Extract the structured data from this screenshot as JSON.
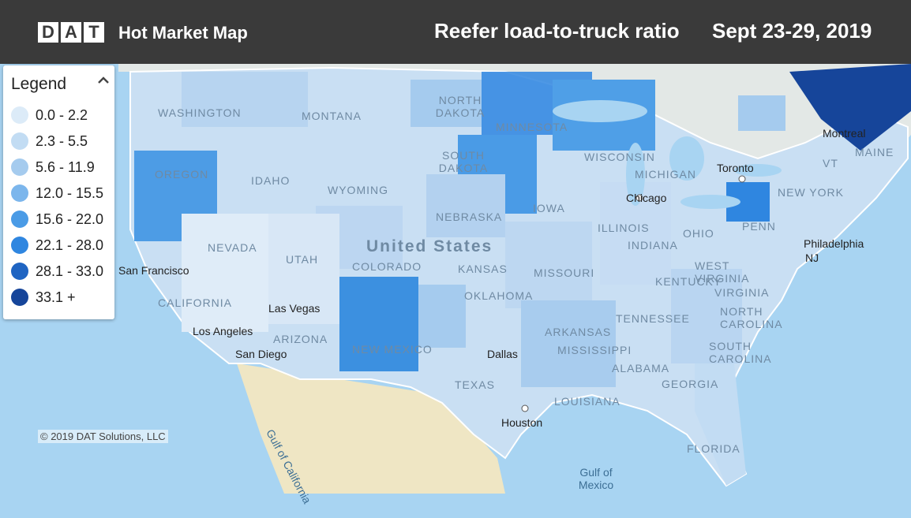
{
  "header": {
    "logo_letters": [
      "D",
      "A",
      "T"
    ],
    "app_title": "Hot Market Map",
    "metric_title": "Reefer load-to-truck ratio",
    "date_range": "Sept 23-29, 2019"
  },
  "legend": {
    "title": "Legend",
    "toggle_icon": "chevron-up-icon",
    "items": [
      {
        "label": "0.0 - 2.2",
        "color": "#dcebf8"
      },
      {
        "label": "2.3 - 5.5",
        "color": "#c2dcf3"
      },
      {
        "label": "5.6 - 11.9",
        "color": "#a5cbee"
      },
      {
        "label": "12.0 - 15.5",
        "color": "#7cb6ec"
      },
      {
        "label": "15.6 - 22.0",
        "color": "#4a9be6"
      },
      {
        "label": "22.1 - 28.0",
        "color": "#2f86e0"
      },
      {
        "label": "28.1 - 33.0",
        "color": "#1f64c2"
      },
      {
        "label": "33.1 +",
        "color": "#16459a"
      }
    ]
  },
  "map": {
    "country_label": "United States",
    "water_color": "#a8d4f2",
    "land_color": "#e8ece9",
    "mexico_color": "#efe6c4",
    "state_labels": [
      "WASHINGTON",
      "MONTANA",
      "NORTH DAKOTA",
      "MINNESOTA",
      "OREGON",
      "IDAHO",
      "SOUTH DAKOTA",
      "WISCONSIN",
      "MICHIGAN",
      "WYOMING",
      "NEBRASKA",
      "IOWA",
      "ILLINOIS",
      "NEVADA",
      "UTAH",
      "COLORADO",
      "KANSAS",
      "MISSOURI",
      "INDIANA",
      "OHIO",
      "CALIFORNIA",
      "ARIZONA",
      "NEW MEXICO",
      "OKLAHOMA",
      "ARKANSAS",
      "TENNESSEE",
      "KENTUCKY",
      "VIRGINIA",
      "WEST VIRGINIA",
      "NORTH CAROLINA",
      "SOUTH CAROLINA",
      "TEXAS",
      "LOUISIANA",
      "MISSISSIPPI",
      "ALABAMA",
      "GEORGIA",
      "FLORIDA",
      "PENN",
      "NEW YORK",
      "MAINE",
      "VT"
    ],
    "cities": [
      "San Francisco",
      "Las Vegas",
      "Los Angeles",
      "San Diego",
      "Dallas",
      "Houston",
      "Chicago",
      "Toronto",
      "Montreal",
      "Philadelphia",
      "NJ"
    ],
    "water_labels": [
      "Gulf of California",
      "Gulf of Mexico"
    ]
  },
  "footer": {
    "copyright": "© 2019 DAT Solutions, LLC"
  }
}
